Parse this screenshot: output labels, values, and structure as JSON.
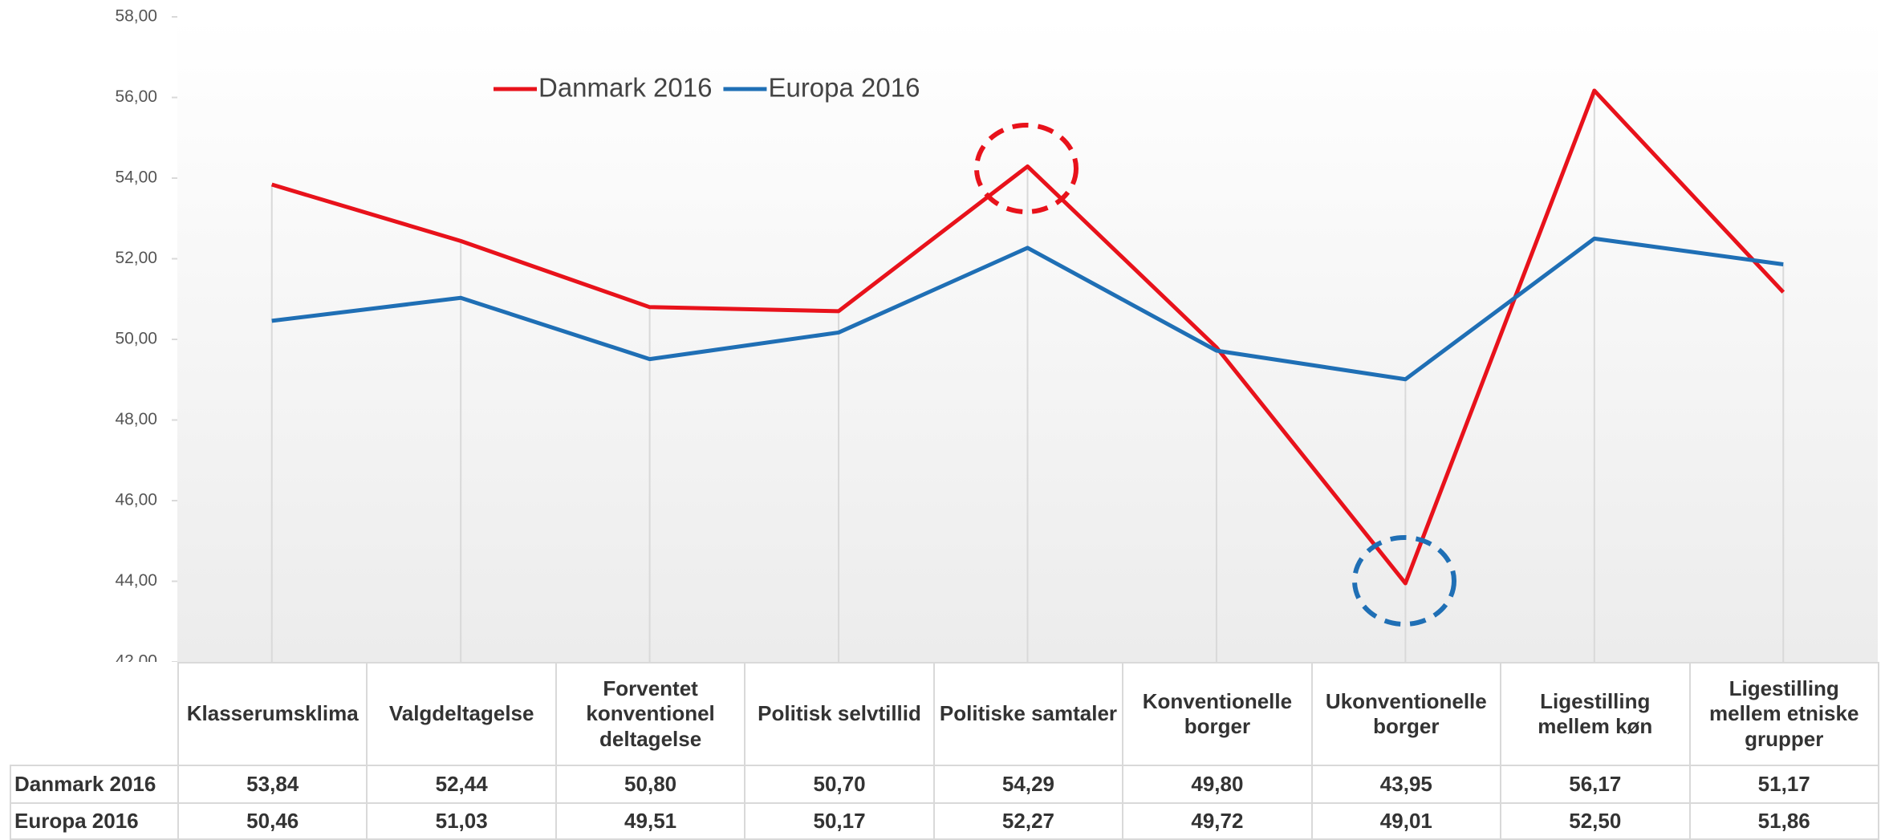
{
  "chart_data": {
    "type": "line",
    "categories": [
      "Klasserumsklima",
      "Valgdeltagelse",
      "Forventet konventionel deltagelse",
      "Politisk selvtillid",
      "Politiske samtaler",
      "Konventionelle borger",
      "Ukonventionelle borger",
      "Ligestilling mellem køn",
      "Ligestilling mellem etniske grupper"
    ],
    "series": [
      {
        "name": "Danmark 2016",
        "color": "#e8121b",
        "values": [
          53.84,
          52.44,
          50.8,
          50.7,
          54.29,
          49.8,
          43.95,
          56.17,
          51.17
        ],
        "value_labels": [
          "53,84",
          "52,44",
          "50,80",
          "50,70",
          "54,29",
          "49,80",
          "43,95",
          "56,17",
          "51,17"
        ]
      },
      {
        "name": "Europa 2016",
        "color": "#1f6fb5",
        "values": [
          50.46,
          51.03,
          49.51,
          50.17,
          52.27,
          49.72,
          49.01,
          52.5,
          51.86
        ],
        "value_labels": [
          "50,46",
          "51,03",
          "49,51",
          "50,17",
          "52,27",
          "49,72",
          "49,01",
          "52,50",
          "51,86"
        ]
      }
    ],
    "ylim": [
      42,
      58
    ],
    "yticks": [
      {
        "value": 42,
        "label": "42,00"
      },
      {
        "value": 44,
        "label": "44,00"
      },
      {
        "value": 46,
        "label": "46,00"
      },
      {
        "value": 48,
        "label": "48,00"
      },
      {
        "value": 50,
        "label": "50,00"
      },
      {
        "value": 52,
        "label": "52,00"
      },
      {
        "value": 54,
        "label": "54,00"
      },
      {
        "value": 56,
        "label": "56,00"
      },
      {
        "value": 58,
        "label": "58,00"
      }
    ],
    "legend": "top"
  }
}
